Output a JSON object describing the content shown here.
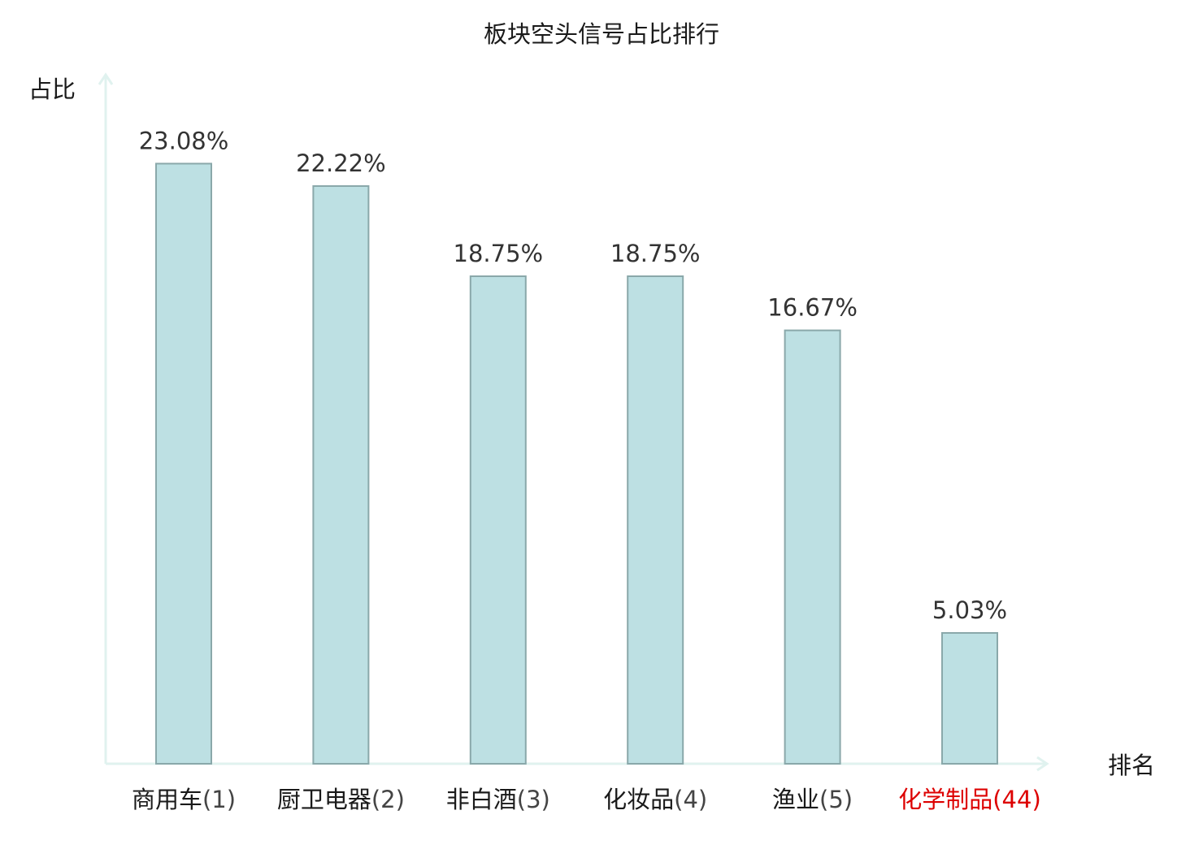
{
  "chart_data": {
    "type": "bar",
    "title": "板块空头信号占比排行",
    "ylabel": "占比",
    "xlabel": "排名",
    "categories": [
      "商用车",
      "厨卫电器",
      "非白酒",
      "化妆品",
      "渔业",
      "化学制品"
    ],
    "ranks": [
      "(1)",
      "(2)",
      "(3)",
      "(4)",
      "(5)",
      "(44)"
    ],
    "values": [
      23.08,
      22.22,
      18.75,
      18.75,
      16.67,
      5.03
    ],
    "value_labels": [
      "23.08%",
      "22.22%",
      "18.75%",
      "18.75%",
      "16.67%",
      "5.03%"
    ],
    "highlight_index": 5,
    "ylim": [
      0,
      26.5
    ],
    "grid": false,
    "colors": {
      "bar_fill": "#bde0e3",
      "bar_stroke": "#8aa8aa",
      "axis": "#e0f2ef",
      "highlight_text": "#dd0000",
      "text": "#1a1a1a",
      "value_text": "#333333"
    }
  }
}
